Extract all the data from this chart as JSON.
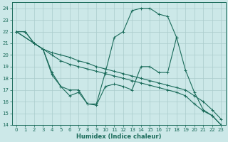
{
  "xlabel": "Humidex (Indice chaleur)",
  "xlim": [
    -0.5,
    23.5
  ],
  "ylim": [
    14,
    24.5
  ],
  "yticks": [
    14,
    15,
    16,
    17,
    18,
    19,
    20,
    21,
    22,
    23,
    24
  ],
  "xticks": [
    0,
    1,
    2,
    3,
    4,
    5,
    6,
    7,
    8,
    9,
    10,
    11,
    12,
    13,
    14,
    15,
    16,
    17,
    18,
    19,
    20,
    21,
    22,
    23
  ],
  "bg_color": "#cce8e8",
  "line_color": "#1a6b5a",
  "grid_color": "#aacccc",
  "lines": [
    {
      "x": [
        0,
        1,
        2,
        3,
        4,
        5,
        6,
        7,
        8,
        9,
        10,
        11,
        12,
        13,
        14,
        15,
        16,
        17,
        18,
        19,
        20,
        21,
        22,
        23
      ],
      "y": [
        22,
        22,
        21,
        20.5,
        20.2,
        20.0,
        19.8,
        19.5,
        19.3,
        19.0,
        18.8,
        18.6,
        18.4,
        18.2,
        18.0,
        17.8,
        17.6,
        17.4,
        17.2,
        17.0,
        16.5,
        16.0,
        15.3,
        14.5
      ]
    },
    {
      "x": [
        0,
        1,
        2,
        3,
        4,
        5,
        6,
        7,
        8,
        9,
        10,
        11,
        12,
        13,
        14,
        15,
        16,
        17,
        18,
        19,
        20,
        21,
        22,
        23
      ],
      "y": [
        22,
        22,
        21,
        20.5,
        20.0,
        19.5,
        19.2,
        19.0,
        18.8,
        18.6,
        18.4,
        18.2,
        18.0,
        17.8,
        17.6,
        17.4,
        17.2,
        17.0,
        16.8,
        16.5,
        15.8,
        15.2,
        14.8,
        14.0
      ]
    },
    {
      "x": [
        0,
        2,
        3,
        4,
        5,
        6,
        7,
        8,
        9,
        10,
        11,
        12,
        13,
        14,
        15,
        16,
        17,
        18
      ],
      "y": [
        22,
        21,
        20.5,
        18.5,
        17.3,
        17.0,
        17.0,
        15.8,
        15.7,
        17.3,
        17.5,
        17.3,
        17.0,
        19.0,
        19.0,
        18.5,
        18.5,
        21.5
      ]
    },
    {
      "x": [
        0,
        2,
        3,
        4,
        5,
        6,
        7,
        8,
        9,
        10,
        11,
        12,
        13,
        14,
        15,
        16,
        17,
        18,
        19,
        20,
        21,
        22,
        23
      ],
      "y": [
        22,
        21,
        20.5,
        18.3,
        17.3,
        16.5,
        16.8,
        15.8,
        15.8,
        18.5,
        21.5,
        22.0,
        23.8,
        24.0,
        24.0,
        23.5,
        23.3,
        21.5,
        18.7,
        16.8,
        15.3,
        14.8,
        14.0
      ]
    }
  ]
}
